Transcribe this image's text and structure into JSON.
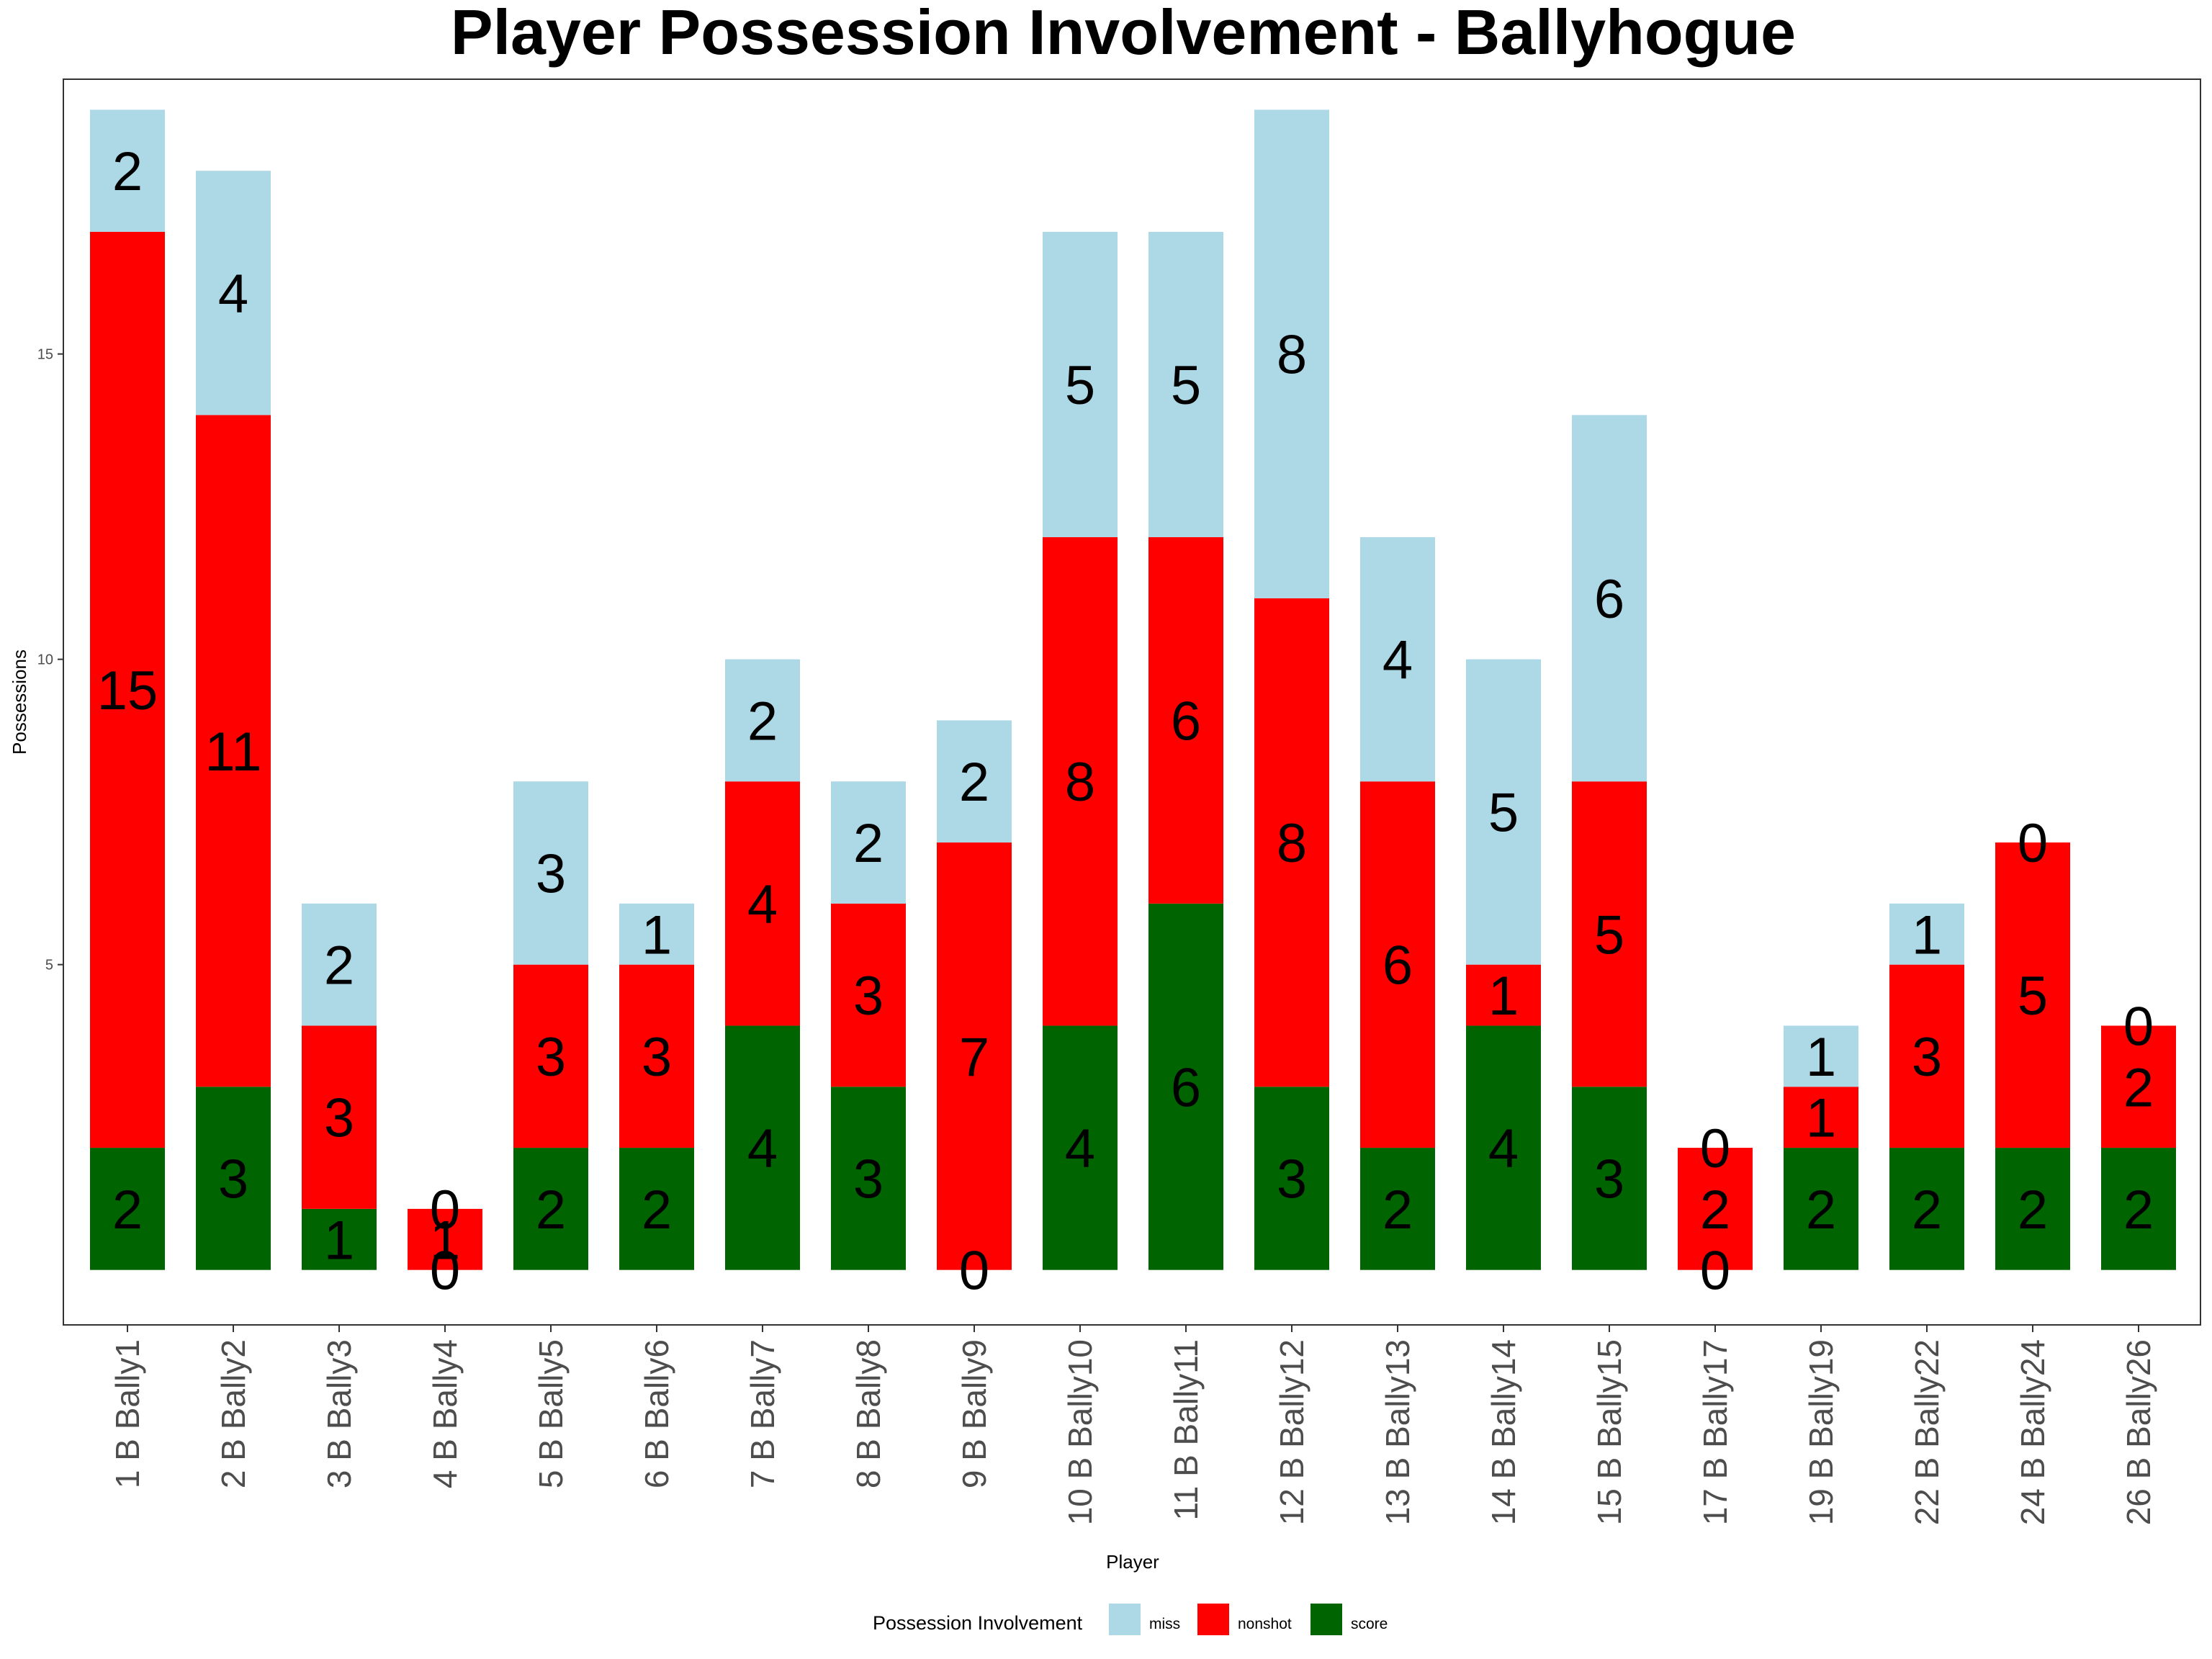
{
  "chart_data": {
    "type": "bar",
    "stacked": true,
    "title": "Player Possession Involvement - Ballyhogue",
    "xlabel": "Player",
    "ylabel": "Possessions",
    "ylim": [
      -0.9,
      19.5
    ],
    "yticks": [
      5,
      10,
      15
    ],
    "grid": false,
    "legend_placement": "bottom",
    "legend_title": "Possession Involvement",
    "categories": [
      "1 B Bally1",
      "2 B Bally2",
      "3 B Bally3",
      "4 B Bally4",
      "5 B Bally5",
      "6 B Bally6",
      "7 B Bally7",
      "8 B Bally8",
      "9 B Bally9",
      "10 B Bally10",
      "11 B Bally11",
      "12 B Bally12",
      "13 B Bally13",
      "14 B Bally14",
      "15 B Bally15",
      "17 B Bally17",
      "19 B Bally19",
      "22 B Bally22",
      "24 B Bally24",
      "26 B Bally26"
    ],
    "series": [
      {
        "name": "score",
        "color": "#006400",
        "values": [
          2,
          3,
          1,
          0,
          2,
          2,
          4,
          3,
          0,
          4,
          6,
          3,
          2,
          4,
          3,
          0,
          2,
          2,
          2,
          2
        ]
      },
      {
        "name": "nonshot",
        "color": "#ff0000",
        "values": [
          15,
          11,
          3,
          1,
          3,
          3,
          4,
          3,
          7,
          8,
          6,
          8,
          6,
          1,
          5,
          2,
          1,
          3,
          5,
          2
        ]
      },
      {
        "name": "miss",
        "color": "#add8e6",
        "values": [
          2,
          4,
          2,
          0,
          3,
          1,
          2,
          2,
          2,
          5,
          5,
          8,
          4,
          5,
          6,
          0,
          1,
          1,
          0,
          0
        ]
      }
    ],
    "legend_order": [
      "miss",
      "nonshot",
      "score"
    ]
  }
}
